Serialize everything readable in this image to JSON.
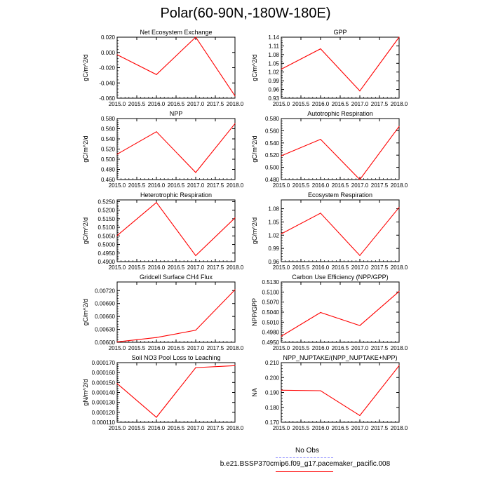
{
  "title": "Polar(60-90N,-180W-180E)",
  "legend": {
    "obs_label": "No Obs",
    "obs_color": "#9999ff",
    "run_label": "b.e21.BSSP370cmip6.f09_g17.pacemaker_pacific.008",
    "run_color": "#ff0000"
  },
  "chart_data": [
    {
      "type": "line",
      "title": "Net Ecosystem Exchange",
      "ylabel": "gC/m^2/d",
      "x": [
        2015,
        2016,
        2017,
        2018
      ],
      "series": [
        {
          "color": "#ff0000",
          "values": [
            -0.003,
            -0.029,
            0.02,
            -0.057
          ]
        }
      ],
      "xlim": [
        2015,
        2018
      ],
      "xticks": [
        "2015.0",
        "2015.5",
        "2016.0",
        "2016.5",
        "2017.0",
        "2017.5",
        "2018.0"
      ],
      "ylim": [
        -0.06,
        0.02
      ],
      "yticks": [
        "-0.060",
        "-0.040",
        "-0.020",
        "0.000",
        "0.020"
      ]
    },
    {
      "type": "line",
      "title": "GPP",
      "ylabel": "gC/m^2/d",
      "x": [
        2015,
        2016,
        2017,
        2018
      ],
      "series": [
        {
          "color": "#ff0000",
          "values": [
            1.03,
            1.1,
            0.955,
            1.14
          ]
        }
      ],
      "xlim": [
        2015,
        2018
      ],
      "xticks": [
        "2015.0",
        "2015.5",
        "2016.0",
        "2016.5",
        "2017.0",
        "2017.5",
        "2018.0"
      ],
      "ylim": [
        0.93,
        1.14
      ],
      "yticks": [
        "0.93",
        "0.96",
        "0.99",
        "1.02",
        "1.05",
        "1.08",
        "1.11",
        "1.14"
      ]
    },
    {
      "type": "line",
      "title": "NPP",
      "ylabel": "gC/m^2/d",
      "x": [
        2015,
        2016,
        2017,
        2018
      ],
      "series": [
        {
          "color": "#ff0000",
          "values": [
            0.51,
            0.554,
            0.474,
            0.57
          ]
        }
      ],
      "xlim": [
        2015,
        2018
      ],
      "xticks": [
        "2015.0",
        "2015.5",
        "2016.0",
        "2016.5",
        "2017.0",
        "2017.5",
        "2018.0"
      ],
      "ylim": [
        0.46,
        0.58
      ],
      "yticks": [
        "0.460",
        "0.480",
        "0.500",
        "0.520",
        "0.540",
        "0.560",
        "0.580"
      ]
    },
    {
      "type": "line",
      "title": "Autotrophic Respiration",
      "ylabel": "gC/m^2/d",
      "x": [
        2015,
        2016,
        2017,
        2018
      ],
      "series": [
        {
          "color": "#ff0000",
          "values": [
            0.519,
            0.546,
            0.48,
            0.567
          ]
        }
      ],
      "xlim": [
        2015,
        2018
      ],
      "xticks": [
        "2015.0",
        "2015.5",
        "2016.0",
        "2016.5",
        "2017.0",
        "2017.5",
        "2018.0"
      ],
      "ylim": [
        0.48,
        0.58
      ],
      "yticks": [
        "0.480",
        "0.500",
        "0.520",
        "0.540",
        "0.560",
        "0.580"
      ]
    },
    {
      "type": "line",
      "title": "Heterotrophic Respiration",
      "ylabel": "gC/m^2/d",
      "x": [
        2015,
        2016,
        2017,
        2018
      ],
      "series": [
        {
          "color": "#ff0000",
          "values": [
            0.5052,
            0.5245,
            0.4935,
            0.5155
          ]
        }
      ],
      "xlim": [
        2015,
        2018
      ],
      "xticks": [
        "2015.0",
        "2015.5",
        "2016.0",
        "2016.5",
        "2017.0",
        "2017.5",
        "2018.0"
      ],
      "ylim": [
        0.49,
        0.526
      ],
      "yticks": [
        "0.4900",
        "0.4950",
        "0.5000",
        "0.5050",
        "0.5100",
        "0.5150",
        "0.5200",
        "0.5250"
      ]
    },
    {
      "type": "line",
      "title": "Ecosystem Respiration",
      "ylabel": "gC/m^2/d",
      "x": [
        2015,
        2016,
        2017,
        2018
      ],
      "series": [
        {
          "color": "#ff0000",
          "values": [
            1.023,
            1.07,
            0.974,
            1.083
          ]
        }
      ],
      "xlim": [
        2015,
        2018
      ],
      "xticks": [
        "2015.0",
        "2015.5",
        "2016.0",
        "2016.5",
        "2017.0",
        "2017.5",
        "2018.0"
      ],
      "ylim": [
        0.96,
        1.1
      ],
      "yticks": [
        "0.96",
        "0.99",
        "1.02",
        "1.05",
        "1.08"
      ]
    },
    {
      "type": "line",
      "title": "Gridcell Surface CH4 Flux",
      "ylabel": "gC/m^2/d",
      "x": [
        2015,
        2016,
        2017,
        2018
      ],
      "series": [
        {
          "color": "#ff0000",
          "values": [
            0.00601,
            0.00611,
            0.00628,
            0.00722
          ]
        }
      ],
      "xlim": [
        2015,
        2018
      ],
      "xticks": [
        "2015.0",
        "2015.5",
        "2016.0",
        "2016.5",
        "2017.0",
        "2017.5",
        "2018.0"
      ],
      "ylim": [
        0.006,
        0.0074
      ],
      "yticks": [
        "0.00600",
        "0.00630",
        "0.00660",
        "0.00690",
        "0.00720"
      ]
    },
    {
      "type": "line",
      "title": "Carbon Use Efficiency (NPP/GPP)",
      "ylabel": "NPP/GPP",
      "x": [
        2015,
        2016,
        2017,
        2018
      ],
      "series": [
        {
          "color": "#ff0000",
          "values": [
            0.4968,
            0.5039,
            0.5,
            0.5102
          ]
        }
      ],
      "xlim": [
        2015,
        2018
      ],
      "xticks": [
        "2015.0",
        "2015.5",
        "2016.0",
        "2016.5",
        "2017.0",
        "2017.5",
        "2018.0"
      ],
      "ylim": [
        0.495,
        0.513
      ],
      "yticks": [
        "0.4950",
        "0.4980",
        "0.5010",
        "0.5040",
        "0.5070",
        "0.5100",
        "0.5130"
      ]
    },
    {
      "type": "line",
      "title": "Soil NO3 Pool Loss to Leaching",
      "ylabel": "gN/m^2/d",
      "x": [
        2015,
        2016,
        2017,
        2018
      ],
      "series": [
        {
          "color": "#ff0000",
          "values": [
            0.000149,
            0.000115,
            0.000165,
            0.000167
          ]
        }
      ],
      "xlim": [
        2015,
        2018
      ],
      "xticks": [
        "2015.0",
        "2015.5",
        "2016.0",
        "2016.5",
        "2017.0",
        "2017.5",
        "2018.0"
      ],
      "ylim": [
        0.00011,
        0.00017
      ],
      "yticks": [
        "0.000110",
        "0.000120",
        "0.000130",
        "0.000140",
        "0.000150",
        "0.000160",
        "0.000170"
      ]
    },
    {
      "type": "line",
      "title": "NPP_NUPTAKE/(NPP_NUPTAKE+NPP)",
      "ylabel": "NA",
      "x": [
        2015,
        2016,
        2017,
        2018
      ],
      "series": [
        {
          "color": "#ff0000",
          "values": [
            0.1915,
            0.1912,
            0.1745,
            0.208
          ]
        }
      ],
      "xlim": [
        2015,
        2018
      ],
      "xticks": [
        "2015.0",
        "2015.5",
        "2016.0",
        "2016.5",
        "2017.0",
        "2017.5",
        "2018.0"
      ],
      "ylim": [
        0.17,
        0.21
      ],
      "yticks": [
        "0.170",
        "0.180",
        "0.190",
        "0.200",
        "0.210"
      ]
    }
  ]
}
